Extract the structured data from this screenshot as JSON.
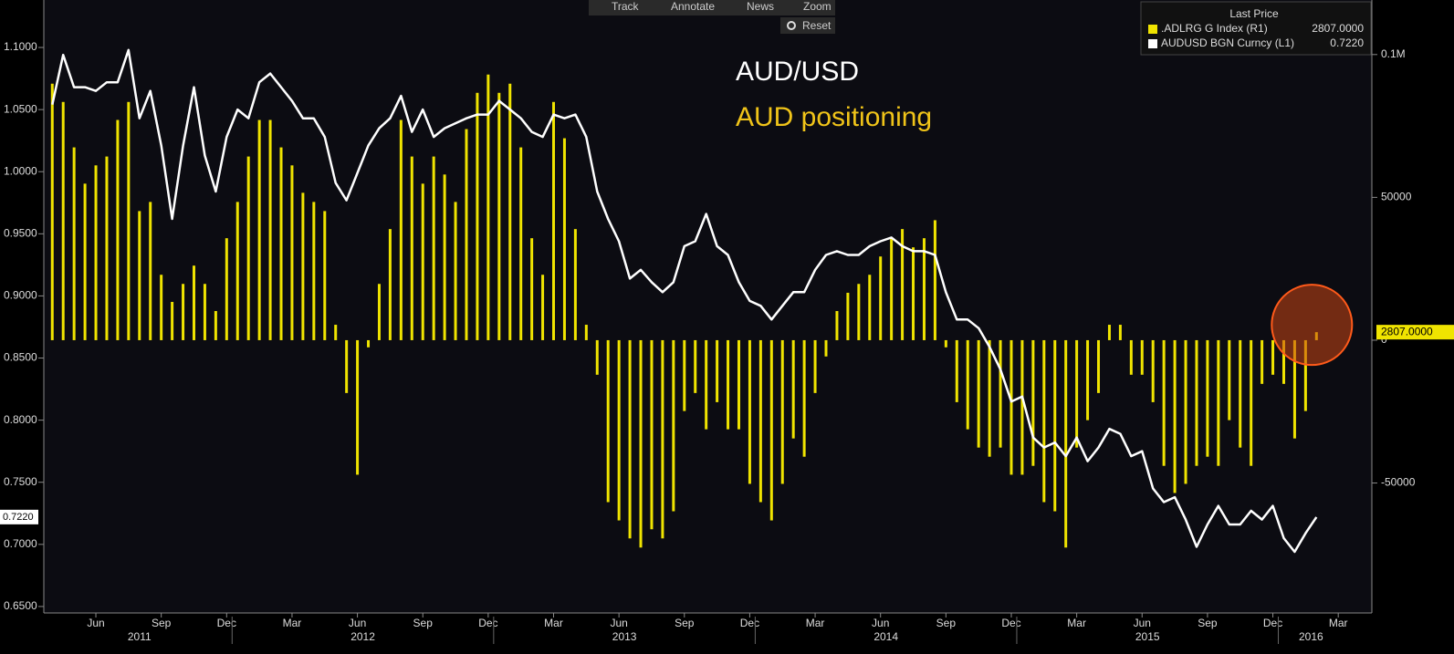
{
  "toolbar": [
    "Track",
    "Annotate",
    "News",
    "Zoom",
    "Reset"
  ],
  "chart_data": {
    "type": "combo",
    "annotations": [
      "AUD/USD",
      "AUD positioning"
    ],
    "legend_title": "Last Price",
    "categories": [
      null,
      null,
      null,
      null,
      "Jun",
      null,
      null,
      null,
      null,
      null,
      "Sep",
      null,
      null,
      null,
      null,
      null,
      "Dec",
      null,
      null,
      null,
      null,
      null,
      "Mar",
      null,
      null,
      null,
      null,
      null,
      "Jun",
      null,
      null,
      null,
      null,
      null,
      "Sep",
      null,
      null,
      null,
      null,
      null,
      "Dec",
      null,
      null,
      null,
      null,
      null,
      "Mar",
      null,
      null,
      null,
      null,
      null,
      "Jun",
      null,
      null,
      null,
      null,
      null,
      "Sep",
      null,
      null,
      null,
      null,
      null,
      "Dec",
      null,
      null,
      null,
      null,
      null,
      "Mar",
      null,
      null,
      null,
      null,
      null,
      "Jun",
      null,
      null,
      null,
      null,
      null,
      "Sep",
      null,
      null,
      null,
      null,
      null,
      "Dec",
      null,
      null,
      null,
      null,
      null,
      "Mar",
      null,
      null,
      null,
      null,
      null,
      "Jun",
      null,
      null,
      null,
      null,
      null,
      "Sep",
      null,
      null,
      null,
      null,
      null,
      "Dec",
      null,
      null,
      null,
      null,
      null,
      "Mar"
    ],
    "years": [
      "2011",
      "2012",
      "2013",
      "2014",
      "2015",
      "2016"
    ],
    "series": [
      {
        "name": "AUDUSD BGN Curncy  (L1)",
        "type": "line",
        "color": "#ffffff",
        "last_label": "0.7220",
        "values": [
          1.054,
          1.094,
          1.068,
          1.068,
          1.065,
          1.072,
          1.072,
          1.098,
          1.043,
          1.065,
          1.021,
          0.962,
          1.021,
          1.068,
          1.013,
          0.984,
          1.028,
          1.05,
          1.043,
          1.072,
          1.079,
          1.068,
          1.057,
          1.043,
          1.043,
          1.028,
          0.991,
          0.977,
          0.999,
          1.021,
          1.035,
          1.043,
          1.061,
          1.032,
          1.05,
          1.028,
          1.035,
          1.039,
          1.043,
          1.046,
          1.046,
          1.057,
          1.05,
          1.043,
          1.032,
          1.028,
          1.046,
          1.043,
          1.046,
          1.028,
          0.984,
          0.962,
          0.944,
          0.914,
          0.921,
          0.911,
          0.903,
          0.911,
          0.94,
          0.944,
          0.966,
          0.94,
          0.933,
          0.911,
          0.896,
          0.892,
          0.881,
          0.892,
          0.903,
          0.903,
          0.921,
          0.933,
          0.936,
          0.933,
          0.933,
          0.94,
          0.944,
          0.947,
          0.94,
          0.936,
          0.936,
          0.933,
          0.903,
          0.881,
          0.881,
          0.874,
          0.859,
          0.841,
          0.815,
          0.819,
          0.786,
          0.778,
          0.782,
          0.771,
          0.786,
          0.767,
          0.778,
          0.793,
          0.789,
          0.771,
          0.775,
          0.745,
          0.734,
          0.738,
          0.72,
          0.698,
          0.716,
          0.731,
          0.716,
          0.716,
          0.727,
          0.72,
          0.731,
          0.705,
          0.694,
          0.709,
          0.722,
          null,
          null
        ]
      },
      {
        "name": ".ADLRG G Index  (R1)",
        "type": "bar",
        "axis": "y2",
        "color": "#f0e400",
        "last_label": "2807.0000",
        "values": [
          89800,
          83400,
          67500,
          54800,
          61200,
          64300,
          77100,
          83400,
          45200,
          48400,
          22900,
          13400,
          19700,
          26100,
          19700,
          10200,
          35700,
          48400,
          64300,
          77100,
          77100,
          67500,
          61200,
          51600,
          48400,
          45200,
          5400,
          -18500,
          -47100,
          -2500,
          19700,
          38900,
          77100,
          64300,
          54800,
          64300,
          58000,
          48400,
          73900,
          86600,
          93000,
          86600,
          89800,
          67500,
          35700,
          22900,
          83400,
          70700,
          38900,
          5400,
          -12100,
          -56700,
          -63100,
          -69400,
          -72600,
          -66200,
          -69400,
          -59900,
          -24800,
          -18500,
          -31200,
          -21700,
          -31200,
          -31200,
          -50300,
          -56700,
          -63100,
          -50300,
          -34400,
          -40800,
          -18500,
          -5700,
          10200,
          16600,
          19700,
          22900,
          29300,
          35700,
          38900,
          32500,
          35700,
          42000,
          -2500,
          -21700,
          -31200,
          -37600,
          -40800,
          -37600,
          -47100,
          -47100,
          -44000,
          -56700,
          -59900,
          -72600,
          -37600,
          -28000,
          -18500,
          5400,
          5400,
          -12100,
          -12100,
          -21700,
          -44000,
          -53500,
          -50300,
          -44000,
          -40800,
          -44000,
          -28000,
          -37600,
          -44000,
          -15300,
          -12100,
          -15300,
          -34400,
          -24800,
          2807,
          null,
          null
        ]
      }
    ],
    "ylim": [
      0.6448,
      1.1382
    ],
    "yticks": [
      {
        "value": 0.65,
        "label": "0.6500"
      },
      {
        "value": 0.7,
        "label": "0.7000"
      },
      {
        "value": 0.75,
        "label": "0.7500"
      },
      {
        "value": 0.8,
        "label": "0.8000"
      },
      {
        "value": 0.85,
        "label": "0.8500"
      },
      {
        "value": 0.9,
        "label": "0.9000"
      },
      {
        "value": 0.95,
        "label": "0.9500"
      },
      {
        "value": 1.0,
        "label": "1.0000"
      },
      {
        "value": 1.05,
        "label": "1.0500"
      },
      {
        "value": 1.1,
        "label": "1.1000"
      }
    ],
    "y2lim": [
      -95500,
      119100
    ],
    "y2ticks": [
      -50000,
      0,
      50000,
      {
        "value": 100000,
        "label": "0.1M"
      }
    ]
  }
}
